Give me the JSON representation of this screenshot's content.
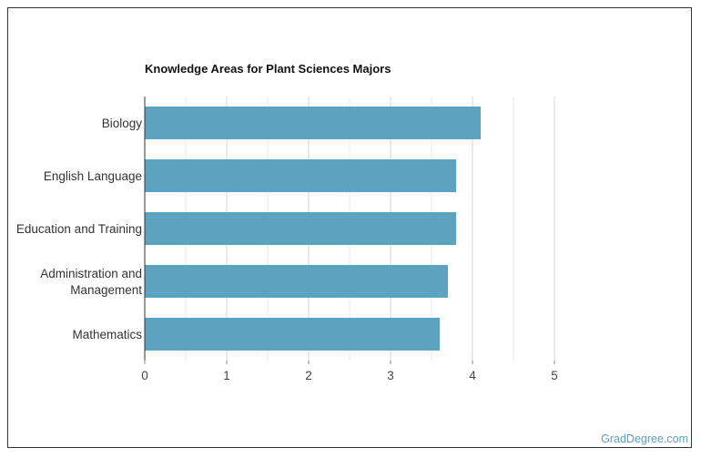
{
  "chart_data": {
    "type": "bar",
    "orientation": "horizontal",
    "title": "Knowledge Areas for Plant Sciences Majors",
    "categories": [
      [
        "Biology"
      ],
      [
        "English Language"
      ],
      [
        "Education and Training"
      ],
      [
        "Administration and",
        "Management"
      ],
      [
        "Mathematics"
      ]
    ],
    "values": [
      4.1,
      3.8,
      3.8,
      3.7,
      3.6
    ],
    "xlim": [
      0,
      5
    ],
    "xticks": [
      "0",
      "1",
      "2",
      "3",
      "4",
      "5"
    ],
    "grid": true,
    "bar_color": "#5ba3bf"
  },
  "watermark": "GradDegree.com"
}
